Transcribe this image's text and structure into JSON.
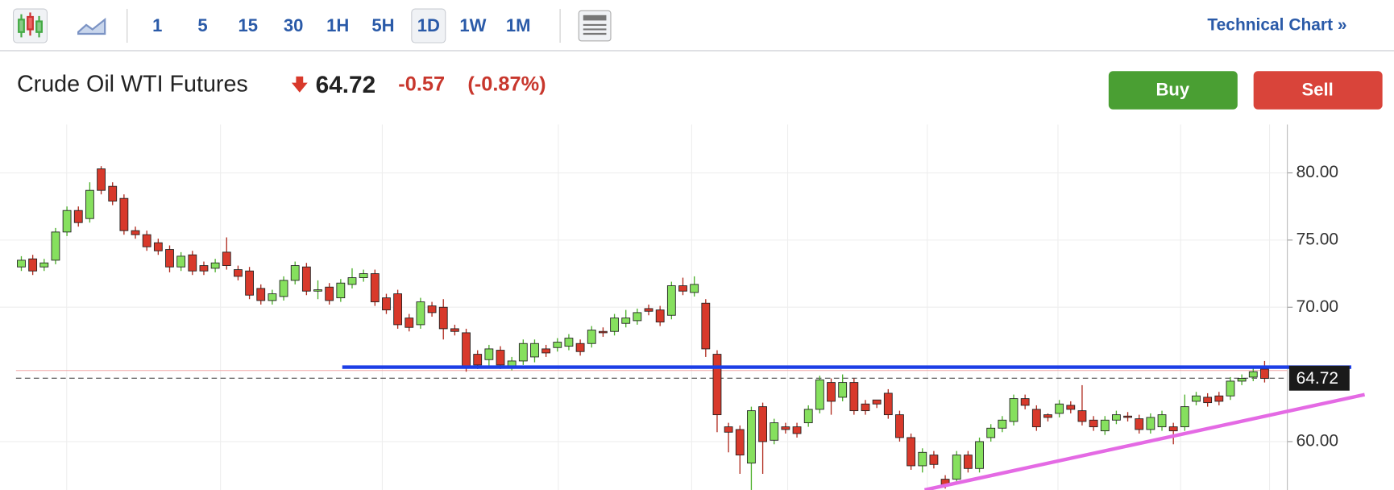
{
  "toolbar": {
    "intervals": [
      "1",
      "5",
      "15",
      "30",
      "1H",
      "5H",
      "1D",
      "1W",
      "1M"
    ],
    "selected": "1D",
    "link": "Technical Chart »"
  },
  "buttons": {
    "buy": "Buy",
    "sell": "Sell"
  },
  "chart_data": {
    "type": "candlestick",
    "title": "Crude Oil WTI Futures",
    "last_price": 64.72,
    "change": -0.57,
    "change_pct": {
      "value": -0.87,
      "label": "(-0.87%)"
    },
    "prev_close": 65.29,
    "ylim": [
      56.4,
      83.6
    ],
    "yticks": [
      {
        "value": 60,
        "label": "60.00"
      },
      {
        "value": 70,
        "label": "70.00"
      },
      {
        "value": 75,
        "label": "75.00"
      },
      {
        "value": 80,
        "label": "80.00"
      }
    ],
    "grid": true,
    "up_color": "#86e05e",
    "down_color": "#d8392b",
    "support_line": [
      65.54,
      65.54
    ],
    "support_color": "#1c3ee6",
    "trend_line": [
      56.4,
      63.5
    ],
    "trend_color": "#e46ae4",
    "open": [
      73.0,
      73.6,
      73.0,
      73.5,
      75.6,
      77.2,
      76.6,
      80.3,
      79.0,
      78.1,
      75.7,
      75.4,
      74.8,
      74.3,
      73.0,
      73.9,
      73.1,
      72.9,
      74.1,
      72.8,
      72.7,
      71.4,
      70.5,
      70.8,
      72.0,
      73.0,
      71.2,
      71.5,
      70.7,
      71.7,
      72.2,
      72.5,
      70.7,
      71.0,
      69.2,
      68.7,
      70.1,
      70.0,
      68.4,
      68.1,
      66.5,
      66.1,
      66.8,
      65.6,
      66.0,
      66.3,
      66.9,
      67.0,
      67.1,
      67.3,
      67.3,
      68.2,
      68.2,
      68.8,
      69.0,
      69.9,
      69.8,
      69.4,
      71.6,
      71.1,
      70.3,
      66.5,
      61.1,
      60.9,
      58.4,
      62.6,
      60.1,
      61.1,
      61.1,
      61.4,
      62.4,
      64.4,
      63.3,
      64.4,
      62.8,
      63.1,
      63.6,
      62.0,
      60.3,
      58.2,
      59.0,
      57.2,
      57.2,
      59.0,
      58.0,
      60.3,
      61.0,
      61.5,
      63.2,
      62.4,
      62.0,
      62.1,
      62.7,
      62.3,
      61.6,
      60.8,
      61.6,
      61.9,
      61.7,
      60.9,
      61.1,
      61.1,
      61.1,
      63.0,
      63.3,
      63.4,
      63.4,
      64.5,
      64.8,
      65.4
    ],
    "high": [
      73.8,
      73.9,
      73.6,
      75.9,
      77.5,
      77.5,
      79.3,
      80.5,
      79.3,
      78.4,
      76.0,
      75.7,
      75.1,
      74.6,
      74.1,
      74.2,
      73.4,
      73.6,
      75.2,
      73.1,
      73.0,
      71.7,
      71.3,
      72.3,
      73.4,
      73.3,
      72.0,
      71.8,
      72.1,
      72.9,
      72.8,
      72.8,
      71.0,
      71.3,
      69.5,
      70.7,
      70.4,
      70.6,
      68.7,
      68.4,
      66.8,
      67.2,
      67.1,
      66.3,
      67.6,
      67.6,
      67.2,
      67.7,
      68.0,
      67.6,
      68.6,
      68.5,
      69.5,
      69.8,
      69.9,
      70.2,
      70.1,
      71.9,
      72.2,
      72.3,
      70.6,
      66.8,
      61.4,
      61.2,
      62.6,
      62.9,
      61.7,
      61.4,
      61.4,
      62.7,
      64.9,
      64.7,
      65.0,
      64.7,
      63.1,
      63.1,
      63.9,
      62.3,
      60.6,
      59.5,
      59.3,
      57.5,
      59.3,
      59.3,
      60.3,
      61.3,
      61.9,
      63.5,
      63.5,
      62.7,
      62.1,
      63.1,
      63.0,
      64.2,
      61.9,
      61.9,
      62.3,
      62.2,
      62.0,
      62.1,
      62.3,
      61.4,
      63.5,
      63.7,
      63.6,
      63.7,
      64.8,
      65.0,
      65.5,
      66.0
    ],
    "low": [
      72.7,
      72.4,
      72.7,
      73.2,
      75.3,
      76.0,
      76.3,
      78.4,
      77.6,
      75.4,
      75.1,
      74.2,
      73.9,
      72.6,
      72.7,
      72.4,
      72.4,
      72.6,
      72.8,
      72.0,
      70.6,
      70.2,
      70.2,
      70.5,
      71.7,
      70.9,
      70.6,
      70.2,
      70.4,
      71.4,
      71.9,
      70.1,
      69.5,
      68.4,
      68.2,
      68.4,
      69.3,
      67.6,
      67.9,
      65.2,
      65.4,
      65.5,
      65.4,
      65.3,
      65.7,
      65.9,
      66.3,
      66.7,
      66.8,
      66.4,
      67.0,
      67.8,
      67.9,
      68.5,
      68.7,
      69.4,
      68.6,
      69.1,
      70.9,
      70.8,
      66.3,
      60.7,
      59.2,
      57.6,
      56.4,
      57.6,
      59.8,
      60.6,
      60.3,
      61.1,
      62.1,
      62.0,
      63.0,
      62.0,
      62.0,
      62.5,
      61.7,
      60.0,
      57.9,
      57.7,
      58.0,
      56.5,
      56.9,
      57.7,
      57.7,
      60.0,
      60.7,
      61.2,
      62.4,
      60.8,
      61.5,
      61.8,
      62.1,
      61.2,
      60.8,
      60.5,
      61.3,
      61.5,
      60.6,
      60.6,
      60.8,
      59.8,
      60.8,
      62.7,
      62.6,
      62.7,
      63.1,
      64.2,
      64.5,
      64.4
    ],
    "close": [
      73.5,
      72.7,
      73.3,
      75.6,
      77.2,
      76.3,
      78.7,
      78.7,
      77.9,
      75.7,
      75.4,
      74.5,
      74.2,
      73.0,
      73.8,
      72.7,
      72.7,
      73.3,
      73.1,
      72.3,
      70.9,
      70.5,
      71.0,
      72.0,
      73.1,
      71.2,
      71.3,
      70.5,
      71.8,
      72.2,
      72.5,
      70.4,
      69.8,
      68.7,
      68.5,
      70.4,
      69.6,
      68.4,
      68.2,
      65.5,
      65.7,
      66.9,
      65.7,
      66.0,
      67.3,
      67.3,
      66.6,
      67.4,
      67.7,
      66.7,
      68.3,
      68.1,
      69.2,
      69.2,
      69.6,
      69.7,
      68.9,
      71.6,
      71.2,
      71.7,
      66.9,
      62.0,
      60.7,
      59.0,
      62.3,
      60.0,
      61.4,
      60.9,
      60.6,
      62.4,
      64.6,
      63.0,
      64.4,
      62.3,
      62.3,
      62.8,
      62.0,
      60.3,
      58.2,
      59.2,
      58.3,
      56.8,
      59.0,
      58.0,
      60.0,
      61.0,
      61.6,
      63.2,
      62.7,
      61.1,
      61.8,
      62.8,
      62.4,
      61.5,
      61.1,
      61.6,
      62.0,
      61.8,
      60.9,
      61.8,
      62.0,
      60.8,
      62.6,
      63.4,
      62.9,
      63.0,
      64.5,
      64.7,
      65.2,
      64.7
    ]
  }
}
